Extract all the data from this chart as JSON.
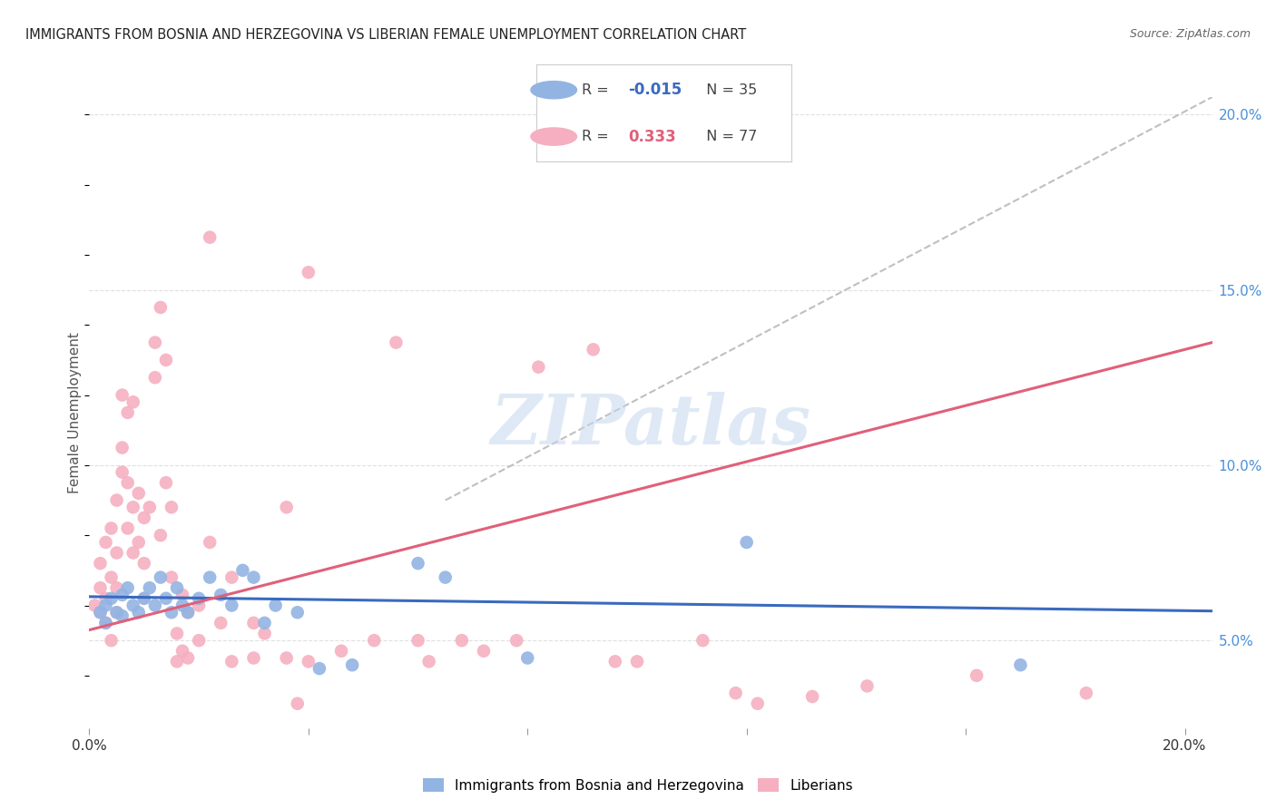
{
  "title": "IMMIGRANTS FROM BOSNIA AND HERZEGOVINA VS LIBERIAN FEMALE UNEMPLOYMENT CORRELATION CHART",
  "source": "Source: ZipAtlas.com",
  "ylabel": "Female Unemployment",
  "legend_blue_R": "-0.015",
  "legend_blue_N": "35",
  "legend_pink_R": "0.333",
  "legend_pink_N": "77",
  "watermark": "ZIPatlas",
  "blue_color": "#92b4e3",
  "pink_color": "#f5afc0",
  "blue_line_color": "#3a6abf",
  "pink_line_color": "#e0607a",
  "right_tick_color": "#4a90d9",
  "grid_color": "#d8d8d8",
  "blue_scatter": [
    [
      0.002,
      0.058
    ],
    [
      0.003,
      0.06
    ],
    [
      0.003,
      0.055
    ],
    [
      0.004,
      0.062
    ],
    [
      0.005,
      0.058
    ],
    [
      0.006,
      0.063
    ],
    [
      0.006,
      0.057
    ],
    [
      0.007,
      0.065
    ],
    [
      0.008,
      0.06
    ],
    [
      0.009,
      0.058
    ],
    [
      0.01,
      0.062
    ],
    [
      0.011,
      0.065
    ],
    [
      0.012,
      0.06
    ],
    [
      0.013,
      0.068
    ],
    [
      0.014,
      0.062
    ],
    [
      0.015,
      0.058
    ],
    [
      0.016,
      0.065
    ],
    [
      0.017,
      0.06
    ],
    [
      0.018,
      0.058
    ],
    [
      0.02,
      0.062
    ],
    [
      0.022,
      0.068
    ],
    [
      0.024,
      0.063
    ],
    [
      0.026,
      0.06
    ],
    [
      0.028,
      0.07
    ],
    [
      0.03,
      0.068
    ],
    [
      0.032,
      0.055
    ],
    [
      0.034,
      0.06
    ],
    [
      0.038,
      0.058
    ],
    [
      0.042,
      0.042
    ],
    [
      0.048,
      0.043
    ],
    [
      0.06,
      0.072
    ],
    [
      0.065,
      0.068
    ],
    [
      0.08,
      0.045
    ],
    [
      0.12,
      0.078
    ],
    [
      0.17,
      0.043
    ]
  ],
  "pink_scatter": [
    [
      0.001,
      0.06
    ],
    [
      0.002,
      0.065
    ],
    [
      0.002,
      0.058
    ],
    [
      0.002,
      0.072
    ],
    [
      0.003,
      0.078
    ],
    [
      0.003,
      0.062
    ],
    [
      0.003,
      0.055
    ],
    [
      0.004,
      0.082
    ],
    [
      0.004,
      0.068
    ],
    [
      0.004,
      0.05
    ],
    [
      0.005,
      0.09
    ],
    [
      0.005,
      0.075
    ],
    [
      0.005,
      0.065
    ],
    [
      0.005,
      0.058
    ],
    [
      0.006,
      0.12
    ],
    [
      0.006,
      0.105
    ],
    [
      0.006,
      0.098
    ],
    [
      0.007,
      0.115
    ],
    [
      0.007,
      0.095
    ],
    [
      0.007,
      0.082
    ],
    [
      0.008,
      0.118
    ],
    [
      0.008,
      0.088
    ],
    [
      0.008,
      0.075
    ],
    [
      0.009,
      0.092
    ],
    [
      0.009,
      0.078
    ],
    [
      0.01,
      0.085
    ],
    [
      0.01,
      0.072
    ],
    [
      0.01,
      0.062
    ],
    [
      0.011,
      0.088
    ],
    [
      0.012,
      0.135
    ],
    [
      0.012,
      0.125
    ],
    [
      0.013,
      0.145
    ],
    [
      0.013,
      0.08
    ],
    [
      0.014,
      0.13
    ],
    [
      0.014,
      0.095
    ],
    [
      0.015,
      0.088
    ],
    [
      0.015,
      0.068
    ],
    [
      0.016,
      0.052
    ],
    [
      0.016,
      0.044
    ],
    [
      0.017,
      0.063
    ],
    [
      0.017,
      0.047
    ],
    [
      0.018,
      0.058
    ],
    [
      0.018,
      0.045
    ],
    [
      0.02,
      0.06
    ],
    [
      0.02,
      0.05
    ],
    [
      0.022,
      0.078
    ],
    [
      0.022,
      0.165
    ],
    [
      0.024,
      0.055
    ],
    [
      0.026,
      0.068
    ],
    [
      0.026,
      0.044
    ],
    [
      0.03,
      0.055
    ],
    [
      0.03,
      0.045
    ],
    [
      0.032,
      0.052
    ],
    [
      0.036,
      0.088
    ],
    [
      0.036,
      0.045
    ],
    [
      0.038,
      0.032
    ],
    [
      0.04,
      0.044
    ],
    [
      0.04,
      0.155
    ],
    [
      0.046,
      0.047
    ],
    [
      0.052,
      0.05
    ],
    [
      0.056,
      0.135
    ],
    [
      0.06,
      0.05
    ],
    [
      0.062,
      0.044
    ],
    [
      0.068,
      0.05
    ],
    [
      0.072,
      0.047
    ],
    [
      0.078,
      0.05
    ],
    [
      0.082,
      0.128
    ],
    [
      0.092,
      0.133
    ],
    [
      0.096,
      0.044
    ],
    [
      0.1,
      0.044
    ],
    [
      0.112,
      0.05
    ],
    [
      0.118,
      0.035
    ],
    [
      0.122,
      0.032
    ],
    [
      0.132,
      0.034
    ],
    [
      0.142,
      0.037
    ],
    [
      0.162,
      0.04
    ],
    [
      0.182,
      0.035
    ]
  ],
  "xlim": [
    0.0,
    0.205
  ],
  "ylim": [
    0.025,
    0.205
  ],
  "background_color": "#ffffff"
}
